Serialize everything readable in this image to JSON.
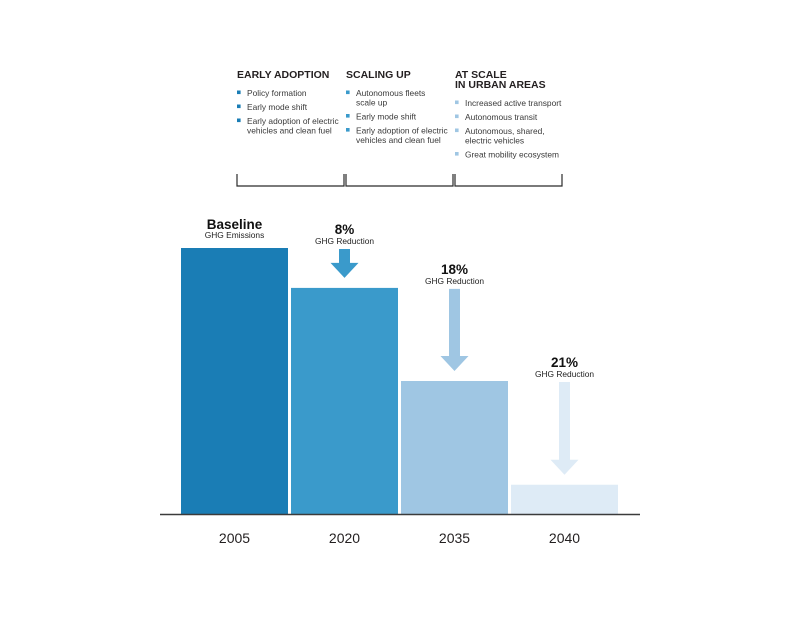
{
  "chart_data": {
    "type": "bar",
    "title": "",
    "xlabel": "",
    "ylabel": "",
    "categories": [
      "2005",
      "2020",
      "2035",
      "2040"
    ],
    "values": [
      100,
      85,
      50,
      11
    ],
    "ylim": [
      0,
      100
    ],
    "grid": false,
    "bar_colors": [
      "#1a7db5",
      "#3a9acb",
      "#9fc6e3",
      "#deebf6"
    ],
    "annotations": [
      {
        "category": "2005",
        "headline": "Baseline",
        "subtitle": "GHG Emissions"
      },
      {
        "category": "2020",
        "headline": "8%",
        "subtitle": "GHG Reduction",
        "arrow_color": "#3a9acb"
      },
      {
        "category": "2035",
        "headline": "18%",
        "subtitle": "GHG Reduction",
        "arrow_color": "#9fc6e3"
      },
      {
        "category": "2040",
        "headline": "21%",
        "subtitle": "GHG Reduction",
        "arrow_color": "#deebf6"
      }
    ],
    "phases": [
      {
        "title_lines": [
          "EARLY ADOPTION"
        ],
        "bullet_color": "#1a7db5",
        "items": [
          [
            "Policy formation"
          ],
          [
            "Early mode shift"
          ],
          [
            "Early adoption of electric",
            "vehicles and clean fuel"
          ]
        ]
      },
      {
        "title_lines": [
          "SCALING UP"
        ],
        "bullet_color": "#3a9acb",
        "items": [
          [
            "Autonomous fleets",
            "scale up"
          ],
          [
            "Early mode shift"
          ],
          [
            "Early adoption of electric",
            "vehicles and clean fuel"
          ]
        ]
      },
      {
        "title_lines": [
          "AT SCALE",
          "IN URBAN AREAS"
        ],
        "bullet_color": "#9fc6e3",
        "items": [
          [
            "Increased active transport"
          ],
          [
            "Autonomous transit"
          ],
          [
            "Autonomous, shared,",
            "electric vehicles"
          ],
          [
            "Great mobility ecosystem"
          ]
        ]
      }
    ]
  }
}
